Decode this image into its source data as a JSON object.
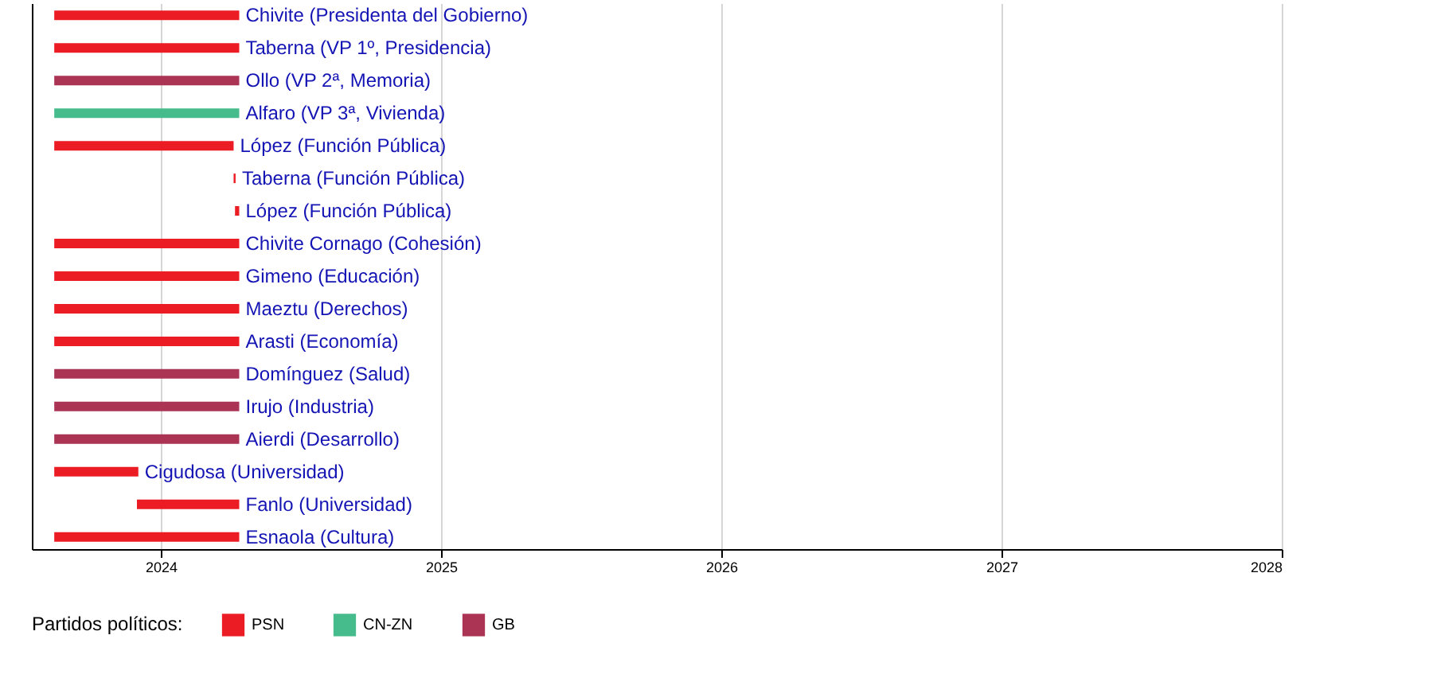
{
  "chart_data": {
    "type": "bar",
    "orientation": "horizontal",
    "categories": [
      "Chivite (Presidenta del Gobierno)",
      "Taberna (VP 1º, Presidencia)",
      "Ollo (VP 2ª, Memoria)",
      "Alfaro (VP 3ª, Vivienda)",
      "López (Función Pública)",
      "Taberna (Función Pública)",
      "López (Función Pública)",
      "Chivite Cornago (Cohesión)",
      "Gimeno (Educación)",
      "Maeztu (Derechos)",
      "Arasti (Economía)",
      "Domínguez (Salud)",
      "Irujo (Industria)",
      "Aierdi (Desarrollo)",
      "Cigudosa (Universidad)",
      "Fanlo (Universidad)",
      "Esnaola (Cultura)"
    ],
    "series": [
      {
        "name": "PSN",
        "color": "#ec1c24",
        "base": [
          2023.62,
          2023.62,
          null,
          null,
          2023.62,
          2024.26,
          2024.265,
          2023.62,
          2023.62,
          2023.62,
          2023.62,
          null,
          null,
          null,
          2023.62,
          2023.915,
          2023.62
        ],
        "values": [
          0.66,
          0.66,
          null,
          null,
          0.64,
          0.007,
          0.015,
          0.66,
          0.66,
          0.66,
          0.66,
          null,
          null,
          null,
          0.3,
          0.365,
          0.66
        ]
      },
      {
        "name": "CN-ZN",
        "color": "#46bb8c",
        "base": [
          null,
          null,
          null,
          2023.62,
          null,
          null,
          null,
          null,
          null,
          null,
          null,
          null,
          null,
          null,
          null,
          null,
          null
        ],
        "values": [
          null,
          null,
          null,
          0.66,
          null,
          null,
          null,
          null,
          null,
          null,
          null,
          null,
          null,
          null,
          null,
          null,
          null
        ]
      },
      {
        "name": "GB",
        "color": "#ab3455",
        "base": [
          null,
          null,
          2023.62,
          null,
          null,
          null,
          null,
          null,
          null,
          null,
          null,
          2023.62,
          2023.62,
          2023.62,
          null,
          null,
          null
        ],
        "values": [
          null,
          null,
          0.66,
          null,
          null,
          null,
          null,
          null,
          null,
          null,
          null,
          0.66,
          0.66,
          0.66,
          null,
          null,
          null
        ]
      }
    ],
    "xlim": [
      2023.54,
      2028
    ],
    "xticks": [
      2024,
      2025,
      2026,
      2027,
      2028
    ],
    "grid": "x",
    "legend": "bottom left",
    "legend_title": "Partidos políticos:",
    "tick_labels": "x"
  }
}
